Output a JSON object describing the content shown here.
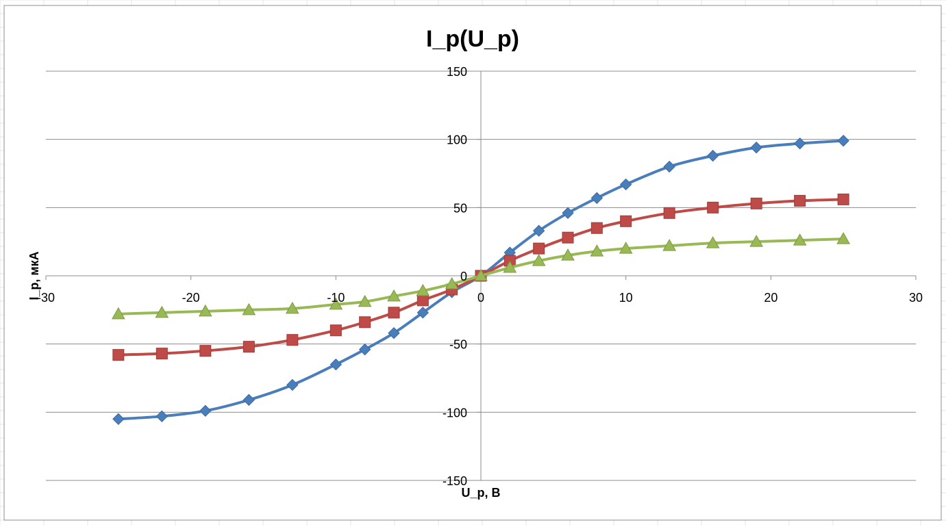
{
  "chart_data": {
    "type": "scatter",
    "title": "I_p(U_p)",
    "xlabel": "U_p, В",
    "ylabel": "I_p, мкА",
    "xlim": [
      -30,
      30
    ],
    "ylim": [
      -150,
      150
    ],
    "x_ticks": [
      -30,
      -20,
      -10,
      0,
      10,
      20,
      30
    ],
    "y_ticks": [
      -150,
      -100,
      -50,
      0,
      50,
      100,
      150
    ],
    "x_tick_labels": [
      "-30",
      "-20",
      "-10",
      "0",
      "10",
      "20",
      "30"
    ],
    "y_tick_labels": [
      "-150",
      "-100",
      "-50",
      "0",
      "50",
      "100",
      "150"
    ],
    "grid": "horizontal",
    "legend": "none",
    "series": [
      {
        "color": "#4a7ebb",
        "marker": "diamond",
        "x": [
          -25,
          -22,
          -19,
          -16,
          -13,
          -10,
          -8,
          -6,
          -4,
          -2,
          0,
          2,
          4,
          6,
          8,
          10,
          13,
          16,
          19,
          22,
          25
        ],
        "y": [
          -105,
          -103,
          -99,
          -91,
          -80,
          -65,
          -54,
          -42,
          -27,
          -12,
          0,
          17,
          33,
          46,
          57,
          67,
          80,
          88,
          94,
          97,
          99
        ]
      },
      {
        "color": "#be4b48",
        "marker": "square",
        "x": [
          -25,
          -22,
          -19,
          -16,
          -13,
          -10,
          -8,
          -6,
          -4,
          -2,
          0,
          2,
          4,
          6,
          8,
          10,
          13,
          16,
          19,
          22,
          25
        ],
        "y": [
          -58,
          -57,
          -55,
          -52,
          -47,
          -40,
          -34,
          -27,
          -18,
          -10,
          0,
          11,
          20,
          28,
          35,
          40,
          46,
          50,
          53,
          55,
          56
        ]
      },
      {
        "color": "#98b954",
        "marker": "triangle",
        "x": [
          -25,
          -22,
          -19,
          -16,
          -13,
          -10,
          -8,
          -6,
          -4,
          -2,
          0,
          2,
          4,
          6,
          8,
          10,
          13,
          16,
          19,
          22,
          25
        ],
        "y": [
          -28,
          -27,
          -26,
          -25,
          -24,
          -21,
          -19,
          -15,
          -11,
          -6,
          0,
          6,
          11,
          15,
          18,
          20,
          22,
          24,
          25,
          26,
          27
        ]
      }
    ]
  }
}
